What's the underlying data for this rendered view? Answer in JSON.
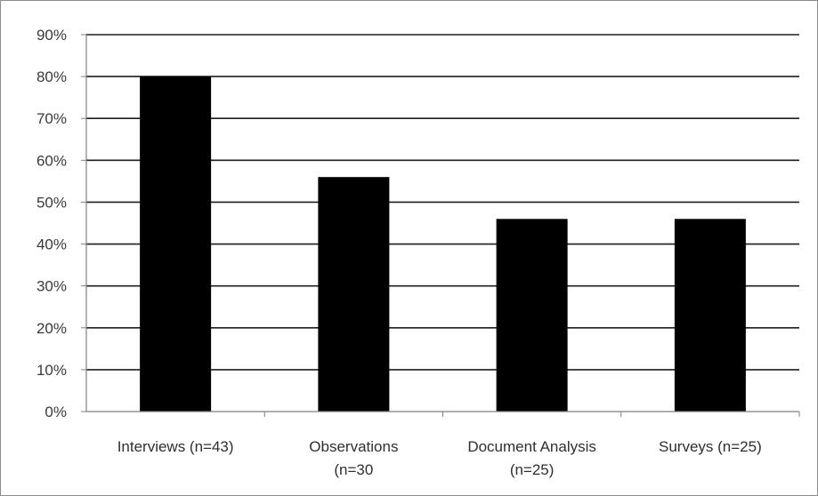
{
  "chart_data": {
    "type": "bar",
    "title": "",
    "xlabel": "",
    "ylabel": "",
    "categories": [
      "Interviews (n=43)",
      "Observations (n=30",
      "Document Analysis (n=25)",
      "Surveys (n=25)"
    ],
    "category_lines": [
      [
        "Interviews (n=43)"
      ],
      [
        "Observations",
        "(n=30"
      ],
      [
        "Document Analysis",
        "(n=25)"
      ],
      [
        "Surveys (n=25)"
      ]
    ],
    "values": [
      0.8,
      0.56,
      0.46,
      0.46
    ],
    "ylim": [
      0,
      0.9
    ],
    "yticks": [
      0,
      0.1,
      0.2,
      0.3,
      0.4,
      0.5,
      0.6,
      0.7,
      0.8,
      0.9
    ],
    "ytick_labels": [
      "0%",
      "10%",
      "20%",
      "30%",
      "40%",
      "50%",
      "60%",
      "70%",
      "80%",
      "90%"
    ],
    "grid": true,
    "legend": "none",
    "colors": {
      "bar": "#000000",
      "grid": "#1e1e1e",
      "axis": "#7f7f7f",
      "text": "#333333"
    }
  }
}
